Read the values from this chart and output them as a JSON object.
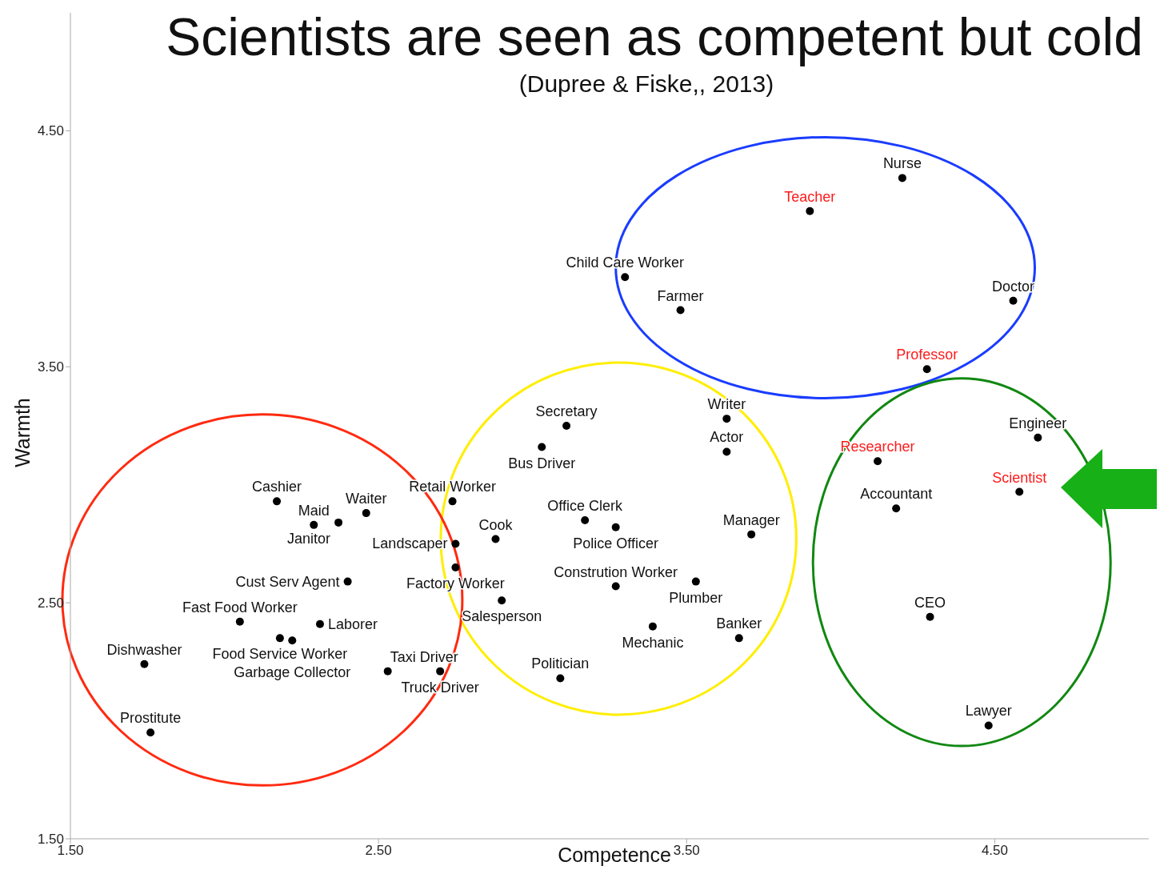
{
  "chart_data": {
    "type": "scatter",
    "title": "Scientists are seen as competent but cold",
    "subtitle": "(Dupree & Fiske,, 2013)",
    "xlabel": "Competence",
    "ylabel": "Warmth",
    "xlim": [
      1.5,
      5.0
    ],
    "ylim": [
      1.5,
      5.0
    ],
    "xticks": [
      {
        "value": 1.5,
        "label": "1.50"
      },
      {
        "value": 2.5,
        "label": "2.50"
      },
      {
        "value": 3.5,
        "label": "3.50"
      },
      {
        "value": 4.5,
        "label": "4.50"
      }
    ],
    "yticks": [
      {
        "value": 1.5,
        "label": "1.50"
      },
      {
        "value": 2.5,
        "label": "2.50"
      },
      {
        "value": 3.5,
        "label": "3.50"
      },
      {
        "value": 4.5,
        "label": "4.50"
      }
    ],
    "grid": false,
    "legend": false,
    "marker": "circle",
    "series": [
      {
        "color": "#000000",
        "x": [
          4.2,
          3.3,
          3.48,
          4.56,
          3.63,
          3.63,
          3.11,
          3.03,
          4.64,
          4.18,
          4.29,
          4.48,
          2.74,
          3.17,
          3.27,
          3.71,
          2.88,
          2.75,
          2.75,
          2.9,
          3.27,
          3.53,
          3.39,
          3.67,
          3.09,
          2.17,
          2.46,
          2.37,
          2.29,
          2.4,
          2.05,
          2.31,
          2.18,
          2.22,
          1.74,
          2.53,
          2.7,
          1.76
        ],
        "values": [
          4.3,
          3.88,
          3.74,
          3.78,
          3.28,
          3.14,
          3.25,
          3.16,
          3.2,
          2.9,
          2.44,
          1.98,
          2.93,
          2.85,
          2.82,
          2.79,
          2.77,
          2.75,
          2.65,
          2.51,
          2.57,
          2.59,
          2.4,
          2.35,
          2.18,
          2.93,
          2.88,
          2.84,
          2.83,
          2.59,
          2.42,
          2.41,
          2.35,
          2.34,
          2.24,
          2.21,
          2.21,
          1.95
        ],
        "value_labels": [
          "Nurse",
          "Child Care Worker",
          "Farmer",
          "Doctor",
          "Writer",
          "Actor",
          "Secretary",
          "Bus Driver",
          "Engineer",
          "Accountant",
          "CEO",
          "Lawyer",
          "Retail Worker",
          "Office Clerk",
          "Police Officer",
          "Manager",
          "Cook",
          "Landscaper",
          "Factory Worker",
          "Salesperson",
          "Constrution Worker",
          "Plumber",
          "Mechanic",
          "Banker",
          "Politician",
          "Cashier",
          "Waiter",
          "Janitor",
          "Maid",
          "Cust Serv Agent",
          "Fast Food Worker",
          "Laborer",
          "Food Service Worker",
          "Garbage Collector",
          "Dishwasher",
          "Taxi Driver",
          "Truck Driver",
          "Prostitute"
        ]
      },
      {
        "color": "#000000",
        "x": [
          3.9,
          4.28,
          4.12,
          4.58
        ],
        "values": [
          4.16,
          3.49,
          3.1,
          2.97
        ],
        "value_labels": [
          "Teacher",
          "Professor",
          "Researcher",
          "Scientist"
        ]
      }
    ]
  }
}
